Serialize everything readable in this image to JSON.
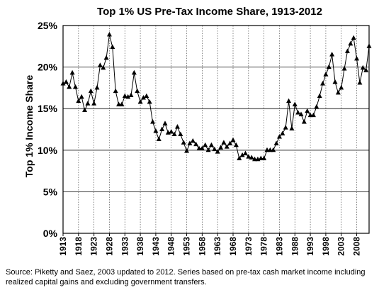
{
  "chart_data": {
    "type": "line",
    "title": "Top 1% US Pre-Tax Income Share, 1913-2012",
    "ylabel": "Top 1% Income Share",
    "xlabel": "",
    "xlim": [
      1913,
      2012
    ],
    "ylim": [
      0,
      25
    ],
    "yticks": [
      "0%",
      "5%",
      "10%",
      "15%",
      "20%",
      "25%"
    ],
    "xticks": [
      "1913",
      "1918",
      "1923",
      "1928",
      "1933",
      "1938",
      "1943",
      "1948",
      "1953",
      "1958",
      "1963",
      "1968",
      "1973",
      "1978",
      "1983",
      "1988",
      "1993",
      "1998",
      "2003",
      "2008"
    ],
    "grid": {
      "x": "dotted-vertical",
      "y": "solid-horizontal"
    },
    "marker": "triangle",
    "line_color": "#000000",
    "x": [
      1913,
      1914,
      1915,
      1916,
      1917,
      1918,
      1919,
      1920,
      1921,
      1922,
      1923,
      1924,
      1925,
      1926,
      1927,
      1928,
      1929,
      1930,
      1931,
      1932,
      1933,
      1934,
      1935,
      1936,
      1937,
      1938,
      1939,
      1940,
      1941,
      1942,
      1943,
      1944,
      1945,
      1946,
      1947,
      1948,
      1949,
      1950,
      1951,
      1952,
      1953,
      1954,
      1955,
      1956,
      1957,
      1958,
      1959,
      1960,
      1961,
      1962,
      1963,
      1964,
      1965,
      1966,
      1967,
      1968,
      1969,
      1970,
      1971,
      1972,
      1973,
      1974,
      1975,
      1976,
      1977,
      1978,
      1979,
      1980,
      1981,
      1982,
      1983,
      1984,
      1985,
      1986,
      1987,
      1988,
      1989,
      1990,
      1991,
      1992,
      1993,
      1994,
      1995,
      1996,
      1997,
      1998,
      1999,
      2000,
      2001,
      2002,
      2003,
      2004,
      2005,
      2006,
      2007,
      2008,
      2009,
      2010,
      2011,
      2012
    ],
    "y": [
      18.0,
      18.2,
      17.6,
      19.3,
      17.6,
      15.9,
      16.4,
      14.8,
      15.6,
      17.1,
      15.6,
      17.5,
      20.2,
      19.9,
      21.1,
      23.9,
      22.4,
      17.1,
      15.5,
      15.5,
      16.5,
      16.4,
      16.6,
      19.3,
      17.1,
      15.8,
      16.3,
      16.5,
      15.8,
      13.4,
      12.3,
      11.3,
      12.5,
      13.2,
      12.1,
      12.2,
      11.9,
      12.8,
      11.9,
      10.9,
      9.9,
      10.8,
      11.1,
      10.7,
      10.2,
      10.2,
      10.6,
      10.0,
      10.6,
      10.1,
      9.8,
      10.3,
      10.9,
      10.4,
      10.8,
      11.2,
      10.6,
      9.0,
      9.4,
      9.6,
      9.2,
      9.1,
      8.9,
      8.9,
      9.0,
      9.0,
      10.0,
      10.0,
      10.0,
      10.8,
      11.6,
      12.0,
      12.7,
      15.9,
      12.6,
      15.5,
      14.5,
      14.3,
      13.4,
      14.7,
      14.2,
      14.2,
      15.2,
      16.5,
      18.0,
      19.1,
      20.0,
      21.5,
      18.2,
      16.9,
      17.5,
      19.8,
      21.9,
      22.8,
      23.5,
      21.0,
      18.1,
      19.9,
      19.6,
      22.5
    ],
    "source_note": "Source: Piketty and Saez, 2003 updated to 2012. Series based on pre-tax cash market income including realized capital gains and excluding government transfers."
  }
}
